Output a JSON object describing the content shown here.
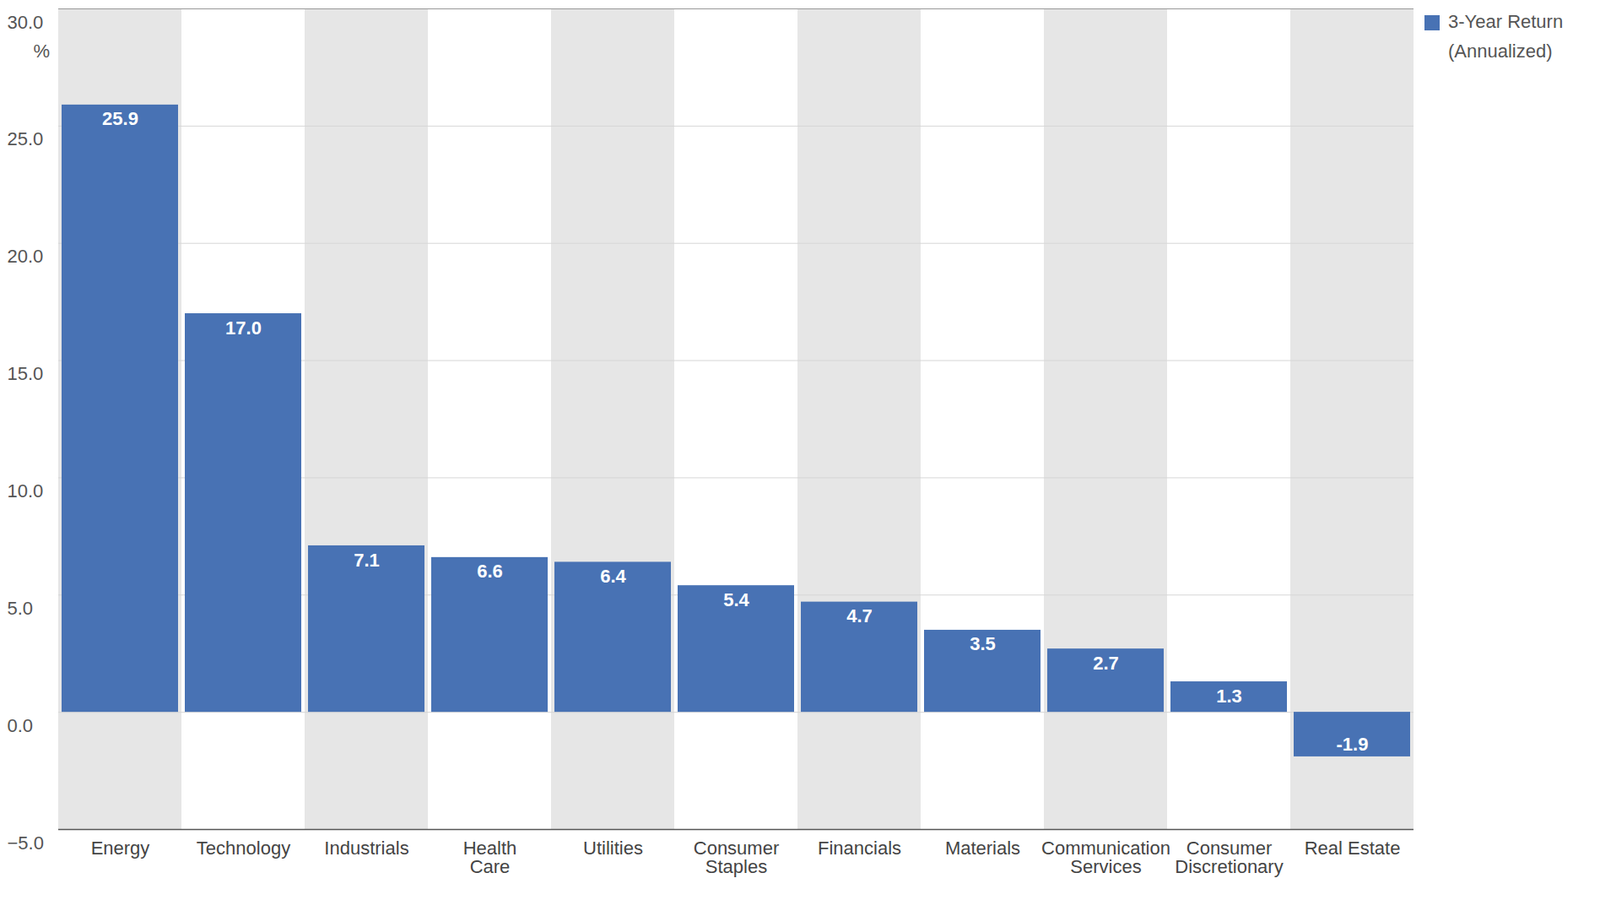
{
  "chart_data": {
    "type": "bar",
    "categories": [
      "Energy",
      "Technology",
      "Industrials",
      "Health Care",
      "Utilities",
      "Consumer Staples",
      "Financials",
      "Materials",
      "Communication Services",
      "Consumer Discretionary",
      "Real Estate"
    ],
    "series": [
      {
        "name": "3-Year Return (Annualized)",
        "color": "#4872b4",
        "values": [
          25.9,
          17.0,
          7.1,
          6.6,
          6.4,
          5.4,
          4.7,
          3.5,
          2.7,
          1.3,
          -1.9
        ],
        "value_labels": [
          "25.9",
          "17.0",
          "7.1",
          "6.6",
          "6.4",
          "5.4",
          "4.7",
          "3.5",
          "2.7",
          "1.3",
          "-1.9"
        ]
      }
    ],
    "y_label": "%",
    "ylim": [
      -5,
      30
    ],
    "yticks": [
      {
        "value": -5,
        "label": "−5.0"
      },
      {
        "value": 0,
        "label": "0.0"
      },
      {
        "value": 5,
        "label": "5.0"
      },
      {
        "value": 10,
        "label": "10.0"
      },
      {
        "value": 15,
        "label": "15.0"
      },
      {
        "value": 20,
        "label": "20.0"
      },
      {
        "value": 25,
        "label": "25.0"
      },
      {
        "value": 30,
        "label": "30.0"
      }
    ],
    "grid": true,
    "data_labels": true,
    "legend": "top-right"
  }
}
